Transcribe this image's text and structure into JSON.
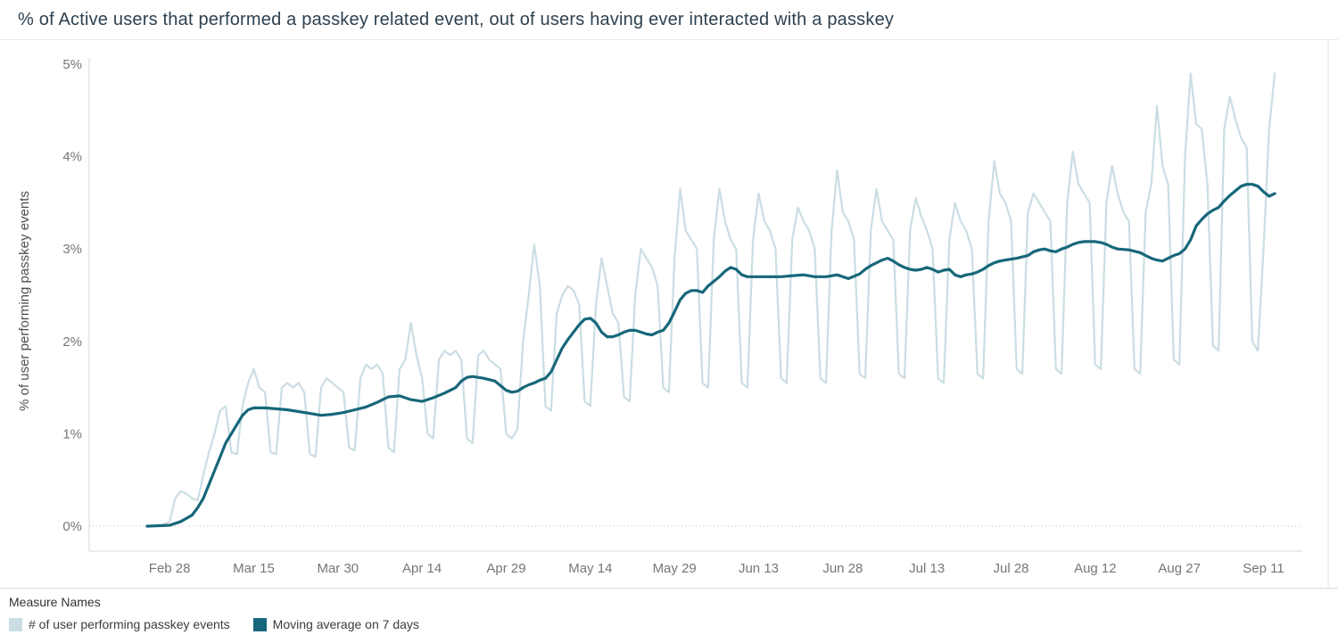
{
  "title": "% of Active users that performed a passkey related event, out of users having ever interacted with a passkey",
  "colors": {
    "daily_series": "#cbdde4",
    "moving_average": "#17677a",
    "title_text": "#2d4150",
    "axis_text": "#767676",
    "axis_title_text": "#4f4f4f",
    "ruler": "#d9d9d9",
    "zero_gridline": "#c0c0c0"
  },
  "legend": {
    "heading": "Measure Names",
    "items": [
      {
        "label": "# of user performing passkey events",
        "color": "#cbdde4"
      },
      {
        "label": "Moving average on 7 days",
        "color": "#17677a"
      }
    ]
  },
  "chart_data": {
    "type": "line",
    "title": "% of Active users that performed a passkey related event, out of users having ever interacted with a passkey",
    "xlabel": "",
    "ylabel": "% of user performing passkey events",
    "ylim": [
      0,
      5
    ],
    "y_ticks": [
      "0%",
      "1%",
      "2%",
      "3%",
      "4%",
      "5%"
    ],
    "grid": "zero-line-dotted-only",
    "legend_position": "bottom-left",
    "x_range": [
      0,
      201
    ],
    "x_unit": "days (daily values, first point = Feb 24)",
    "x_ticks": [
      {
        "pos": 4,
        "label": "Feb 28"
      },
      {
        "pos": 19,
        "label": "Mar 15"
      },
      {
        "pos": 34,
        "label": "Mar 30"
      },
      {
        "pos": 49,
        "label": "Apr 14"
      },
      {
        "pos": 64,
        "label": "Apr 29"
      },
      {
        "pos": 79,
        "label": "May 14"
      },
      {
        "pos": 94,
        "label": "May 29"
      },
      {
        "pos": 109,
        "label": "Jun 13"
      },
      {
        "pos": 124,
        "label": "Jun 28"
      },
      {
        "pos": 139,
        "label": "Jul 13"
      },
      {
        "pos": 154,
        "label": "Jul 28"
      },
      {
        "pos": 169,
        "label": "Aug 12"
      },
      {
        "pos": 184,
        "label": "Aug 27"
      },
      {
        "pos": 199,
        "label": "Sep 11"
      }
    ],
    "series": [
      {
        "name": "# of user performing passkey events",
        "color": "#cbdde4",
        "stroke_width": 2.2,
        "values": [
          0,
          0,
          0,
          0.02,
          0.05,
          0.3,
          0.38,
          0.35,
          0.3,
          0.28,
          0.55,
          0.8,
          1.0,
          1.25,
          1.3,
          0.8,
          0.78,
          1.3,
          1.55,
          1.7,
          1.5,
          1.45,
          0.8,
          0.78,
          1.5,
          1.55,
          1.5,
          1.55,
          1.45,
          0.78,
          0.75,
          1.5,
          1.6,
          1.55,
          1.5,
          1.45,
          0.85,
          0.82,
          1.6,
          1.75,
          1.7,
          1.75,
          1.65,
          0.85,
          0.8,
          1.7,
          1.8,
          2.2,
          1.85,
          1.6,
          1.0,
          0.95,
          1.8,
          1.9,
          1.85,
          1.9,
          1.8,
          0.95,
          0.9,
          1.85,
          1.9,
          1.8,
          1.75,
          1.7,
          1.0,
          0.95,
          1.05,
          2.0,
          2.5,
          3.05,
          2.6,
          1.3,
          1.25,
          2.3,
          2.5,
          2.6,
          2.55,
          2.4,
          1.35,
          1.3,
          2.4,
          2.9,
          2.6,
          2.3,
          2.2,
          1.4,
          1.35,
          2.5,
          3.0,
          2.9,
          2.8,
          2.6,
          1.5,
          1.45,
          2.9,
          3.65,
          3.2,
          3.1,
          3.0,
          1.55,
          1.5,
          3.1,
          3.65,
          3.3,
          3.1,
          3.0,
          1.55,
          1.5,
          3.1,
          3.6,
          3.3,
          3.2,
          3.0,
          1.6,
          1.55,
          3.1,
          3.45,
          3.3,
          3.2,
          3.0,
          1.6,
          1.55,
          3.2,
          3.85,
          3.4,
          3.3,
          3.1,
          1.65,
          1.6,
          3.2,
          3.65,
          3.3,
          3.2,
          3.1,
          1.65,
          1.6,
          3.2,
          3.55,
          3.35,
          3.2,
          3.0,
          1.6,
          1.55,
          3.1,
          3.5,
          3.3,
          3.2,
          3.0,
          1.65,
          1.6,
          3.3,
          3.95,
          3.6,
          3.5,
          3.3,
          1.7,
          1.65,
          3.4,
          3.6,
          3.5,
          3.4,
          3.3,
          1.7,
          1.65,
          3.5,
          4.05,
          3.7,
          3.6,
          3.5,
          1.75,
          1.7,
          3.5,
          3.9,
          3.6,
          3.4,
          3.3,
          1.7,
          1.65,
          3.4,
          3.7,
          4.55,
          3.9,
          3.7,
          1.8,
          1.75,
          4.0,
          4.9,
          4.35,
          4.3,
          3.7,
          1.95,
          1.9,
          4.3,
          4.65,
          4.4,
          4.2,
          4.1,
          2.0,
          1.9,
          3.0,
          4.3,
          4.9
        ]
      },
      {
        "name": "Moving average on 7 days",
        "color": "#17677a",
        "stroke_width": 3.2,
        "points": [
          [
            0,
            0
          ],
          [
            4,
            0.01
          ],
          [
            6,
            0.05
          ],
          [
            8,
            0.12
          ],
          [
            9,
            0.2
          ],
          [
            10,
            0.3
          ],
          [
            11,
            0.45
          ],
          [
            12,
            0.6
          ],
          [
            13,
            0.75
          ],
          [
            14,
            0.9
          ],
          [
            15,
            1.0
          ],
          [
            16,
            1.1
          ],
          [
            17,
            1.2
          ],
          [
            18,
            1.26
          ],
          [
            19,
            1.28
          ],
          [
            21,
            1.28
          ],
          [
            23,
            1.27
          ],
          [
            25,
            1.26
          ],
          [
            27,
            1.24
          ],
          [
            29,
            1.22
          ],
          [
            31,
            1.2
          ],
          [
            33,
            1.21
          ],
          [
            35,
            1.23
          ],
          [
            37,
            1.26
          ],
          [
            39,
            1.29
          ],
          [
            41,
            1.34
          ],
          [
            43,
            1.4
          ],
          [
            45,
            1.41
          ],
          [
            47,
            1.37
          ],
          [
            49,
            1.35
          ],
          [
            51,
            1.39
          ],
          [
            53,
            1.44
          ],
          [
            55,
            1.5
          ],
          [
            56,
            1.57
          ],
          [
            57,
            1.61
          ],
          [
            58,
            1.62
          ],
          [
            60,
            1.6
          ],
          [
            62,
            1.57
          ],
          [
            63,
            1.52
          ],
          [
            64,
            1.47
          ],
          [
            65,
            1.45
          ],
          [
            66,
            1.46
          ],
          [
            67,
            1.5
          ],
          [
            68,
            1.53
          ],
          [
            69,
            1.55
          ],
          [
            70,
            1.58
          ],
          [
            71,
            1.6
          ],
          [
            72,
            1.67
          ],
          [
            73,
            1.8
          ],
          [
            74,
            1.93
          ],
          [
            75,
            2.02
          ],
          [
            76,
            2.1
          ],
          [
            77,
            2.18
          ],
          [
            78,
            2.24
          ],
          [
            79,
            2.25
          ],
          [
            80,
            2.2
          ],
          [
            81,
            2.1
          ],
          [
            82,
            2.05
          ],
          [
            83,
            2.05
          ],
          [
            84,
            2.07
          ],
          [
            85,
            2.1
          ],
          [
            86,
            2.12
          ],
          [
            87,
            2.12
          ],
          [
            88,
            2.1
          ],
          [
            89,
            2.08
          ],
          [
            90,
            2.07
          ],
          [
            91,
            2.1
          ],
          [
            92,
            2.12
          ],
          [
            93,
            2.2
          ],
          [
            94,
            2.32
          ],
          [
            95,
            2.45
          ],
          [
            96,
            2.52
          ],
          [
            97,
            2.55
          ],
          [
            98,
            2.55
          ],
          [
            99,
            2.53
          ],
          [
            100,
            2.6
          ],
          [
            101,
            2.65
          ],
          [
            102,
            2.7
          ],
          [
            103,
            2.76
          ],
          [
            104,
            2.8
          ],
          [
            105,
            2.78
          ],
          [
            106,
            2.72
          ],
          [
            107,
            2.7
          ],
          [
            109,
            2.7
          ],
          [
            111,
            2.7
          ],
          [
            113,
            2.7
          ],
          [
            115,
            2.71
          ],
          [
            117,
            2.72
          ],
          [
            119,
            2.7
          ],
          [
            121,
            2.7
          ],
          [
            123,
            2.72
          ],
          [
            125,
            2.68
          ],
          [
            127,
            2.73
          ],
          [
            128,
            2.78
          ],
          [
            129,
            2.82
          ],
          [
            130,
            2.85
          ],
          [
            131,
            2.88
          ],
          [
            132,
            2.9
          ],
          [
            133,
            2.87
          ],
          [
            134,
            2.83
          ],
          [
            135,
            2.8
          ],
          [
            136,
            2.78
          ],
          [
            137,
            2.77
          ],
          [
            138,
            2.78
          ],
          [
            139,
            2.8
          ],
          [
            140,
            2.78
          ],
          [
            141,
            2.75
          ],
          [
            142,
            2.77
          ],
          [
            143,
            2.78
          ],
          [
            144,
            2.72
          ],
          [
            145,
            2.7
          ],
          [
            146,
            2.72
          ],
          [
            147,
            2.73
          ],
          [
            148,
            2.75
          ],
          [
            149,
            2.78
          ],
          [
            150,
            2.82
          ],
          [
            151,
            2.85
          ],
          [
            152,
            2.87
          ],
          [
            153,
            2.88
          ],
          [
            155,
            2.9
          ],
          [
            157,
            2.93
          ],
          [
            158,
            2.97
          ],
          [
            159,
            2.99
          ],
          [
            160,
            3.0
          ],
          [
            161,
            2.98
          ],
          [
            162,
            2.97
          ],
          [
            163,
            3.0
          ],
          [
            164,
            3.02
          ],
          [
            165,
            3.05
          ],
          [
            166,
            3.07
          ],
          [
            167,
            3.08
          ],
          [
            169,
            3.08
          ],
          [
            170,
            3.07
          ],
          [
            171,
            3.05
          ],
          [
            172,
            3.02
          ],
          [
            173,
            3.0
          ],
          [
            175,
            2.99
          ],
          [
            177,
            2.96
          ],
          [
            178,
            2.93
          ],
          [
            179,
            2.9
          ],
          [
            180,
            2.88
          ],
          [
            181,
            2.87
          ],
          [
            182,
            2.9
          ],
          [
            183,
            2.93
          ],
          [
            184,
            2.95
          ],
          [
            185,
            3.0
          ],
          [
            186,
            3.1
          ],
          [
            187,
            3.25
          ],
          [
            188,
            3.32
          ],
          [
            189,
            3.38
          ],
          [
            190,
            3.42
          ],
          [
            191,
            3.45
          ],
          [
            192,
            3.52
          ],
          [
            193,
            3.58
          ],
          [
            194,
            3.63
          ],
          [
            195,
            3.68
          ],
          [
            196,
            3.7
          ],
          [
            197,
            3.7
          ],
          [
            198,
            3.68
          ],
          [
            199,
            3.62
          ],
          [
            200,
            3.57
          ],
          [
            201,
            3.6
          ]
        ]
      }
    ]
  }
}
